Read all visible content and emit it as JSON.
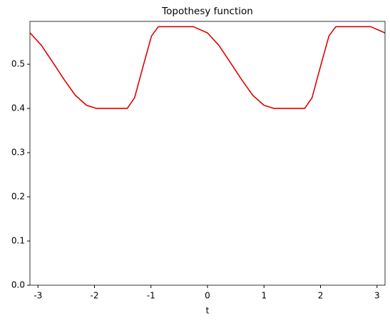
{
  "chart_data": {
    "type": "line",
    "title": "Topothesy function",
    "xlabel": "t",
    "x": [
      -3.14,
      -2.94,
      -2.74,
      -2.54,
      -2.34,
      -2.14,
      -1.96,
      -1.42,
      -1.29,
      -1.14,
      -0.99,
      -0.87,
      -0.25,
      0,
      0.2,
      0.4,
      0.6,
      0.8,
      1.0,
      1.18,
      1.72,
      1.85,
      2.0,
      2.15,
      2.27,
      2.89,
      3.14
    ],
    "series": [
      {
        "color": "#e00000",
        "values": [
          0.571,
          0.543,
          0.505,
          0.466,
          0.43,
          0.407,
          0.4,
          0.4,
          0.424,
          0.495,
          0.564,
          0.585,
          0.585,
          0.571,
          0.543,
          0.505,
          0.466,
          0.43,
          0.407,
          0.4,
          0.4,
          0.424,
          0.495,
          0.564,
          0.585,
          0.585,
          0.571
        ]
      }
    ],
    "xlim": [
      -3.1416,
      3.1416
    ],
    "xticks": [
      -3,
      -2,
      -1,
      0,
      1,
      2,
      3
    ],
    "ylim": [
      0,
      0.597
    ],
    "yticks": [
      {
        "value": 0,
        "label": "0.0"
      },
      0.1,
      0.2,
      0.3,
      0.4,
      0.5
    ],
    "grid": false
  }
}
